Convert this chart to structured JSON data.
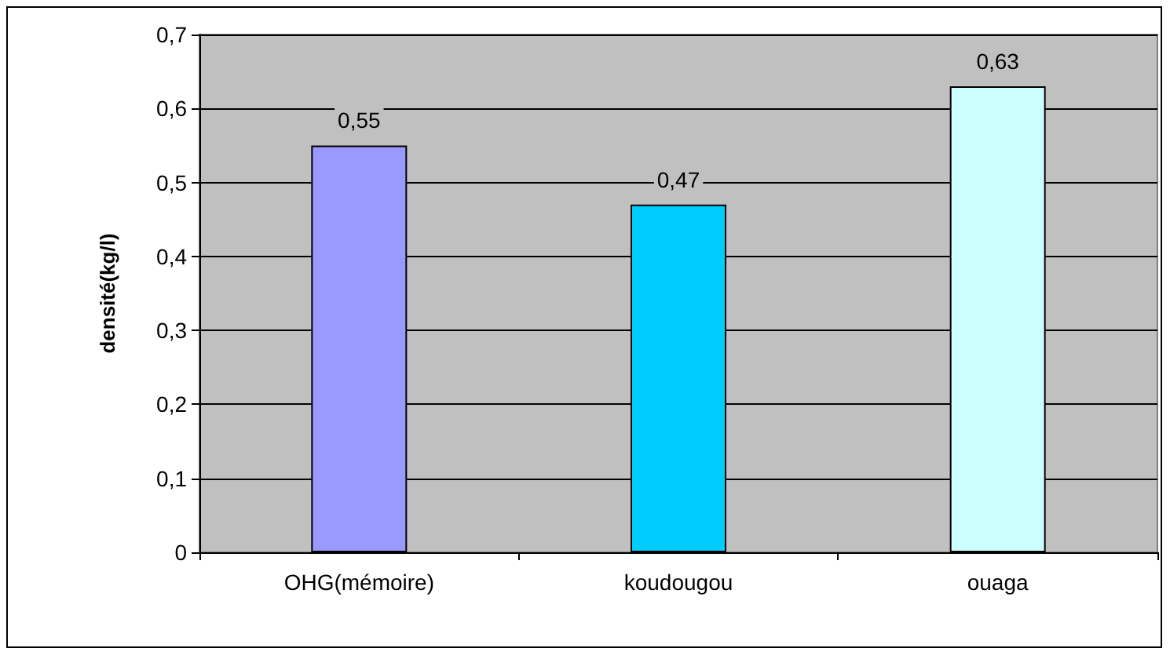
{
  "chart_data": {
    "type": "bar",
    "ylabel": "densité(kg/l)",
    "categories": [
      "OHG(mémoire)",
      "koudougou",
      "ouaga"
    ],
    "values": [
      0.55,
      0.47,
      0.63
    ],
    "colors": [
      "#9999ff",
      "#00ccff",
      "#ccffff"
    ],
    "value_labels": [
      "0,55",
      "0,47",
      "0,63"
    ],
    "ylim": [
      0,
      0.7
    ],
    "yticks": [
      {
        "value": 0,
        "label": "0"
      },
      {
        "value": 0.1,
        "label": "0,1"
      },
      {
        "value": 0.2,
        "label": "0,2"
      },
      {
        "value": 0.3,
        "label": "0,3"
      },
      {
        "value": 0.4,
        "label": "0,4"
      },
      {
        "value": 0.5,
        "label": "0,5"
      },
      {
        "value": 0.6,
        "label": "0,6"
      },
      {
        "value": 0.7,
        "label": "0,7"
      }
    ],
    "grid": "y"
  }
}
